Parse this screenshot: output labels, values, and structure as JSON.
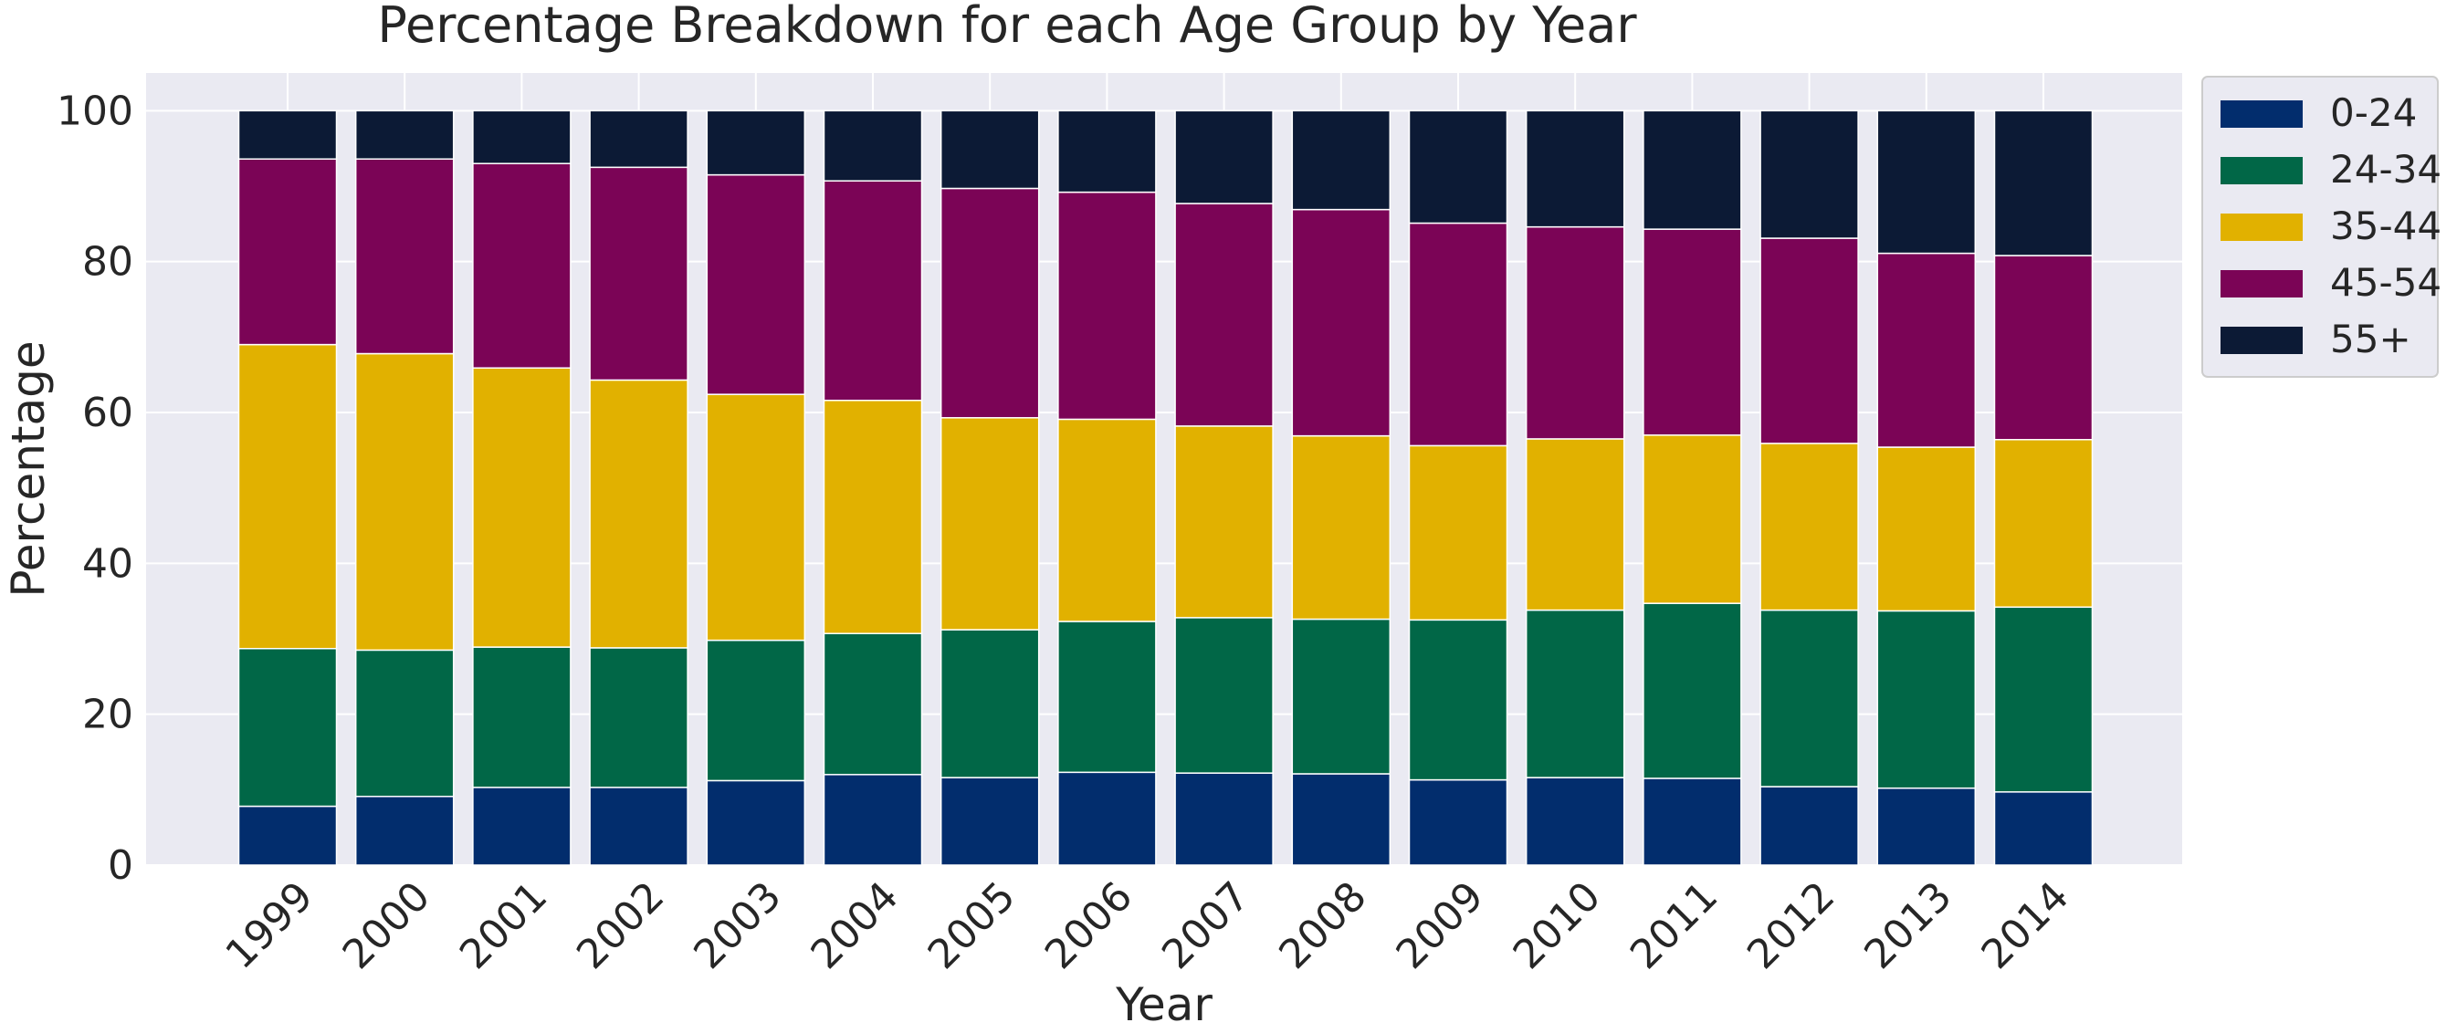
{
  "chart_data": {
    "type": "bar",
    "stacked": true,
    "title": "Percentage Breakdown for each Age Group by Year",
    "xlabel": "Year",
    "ylabel": "Percentage",
    "ylim": [
      0,
      105
    ],
    "yticks": [
      0,
      20,
      40,
      60,
      80,
      100
    ],
    "grid": true,
    "legend_position": "outside-top-right",
    "categories": [
      "1999",
      "2000",
      "2001",
      "2002",
      "2003",
      "2004",
      "2005",
      "2006",
      "2007",
      "2008",
      "2009",
      "2010",
      "2011",
      "2012",
      "2013",
      "2014"
    ],
    "series": [
      {
        "name": "0-24",
        "color": "#022d6d",
        "values": [
          7.8,
          9.1,
          10.3,
          10.3,
          11.2,
          12.0,
          11.6,
          12.3,
          12.2,
          12.1,
          11.3,
          11.6,
          11.5,
          10.4,
          10.2,
          9.7
        ]
      },
      {
        "name": "24-34",
        "color": "#016747",
        "values": [
          20.9,
          19.4,
          18.6,
          18.5,
          18.6,
          18.7,
          19.6,
          20.0,
          20.6,
          20.5,
          21.2,
          22.2,
          23.2,
          23.4,
          23.5,
          24.5
        ]
      },
      {
        "name": "35-44",
        "color": "#e1b100",
        "values": [
          40.3,
          39.3,
          37.0,
          35.5,
          32.6,
          30.9,
          28.1,
          26.8,
          25.4,
          24.3,
          23.1,
          22.7,
          22.3,
          22.1,
          21.7,
          22.2
        ]
      },
      {
        "name": "45-54",
        "color": "#7b0456",
        "values": [
          24.6,
          25.8,
          27.1,
          28.2,
          29.1,
          29.1,
          30.4,
          30.1,
          29.5,
          30.0,
          29.5,
          28.1,
          27.3,
          27.2,
          25.7,
          24.4
        ]
      },
      {
        "name": "55+",
        "color": "#0c1a35",
        "values": [
          6.4,
          6.4,
          7.0,
          7.5,
          8.5,
          9.3,
          10.3,
          10.8,
          12.3,
          13.1,
          14.9,
          15.4,
          15.7,
          16.9,
          18.9,
          19.2
        ]
      }
    ]
  }
}
